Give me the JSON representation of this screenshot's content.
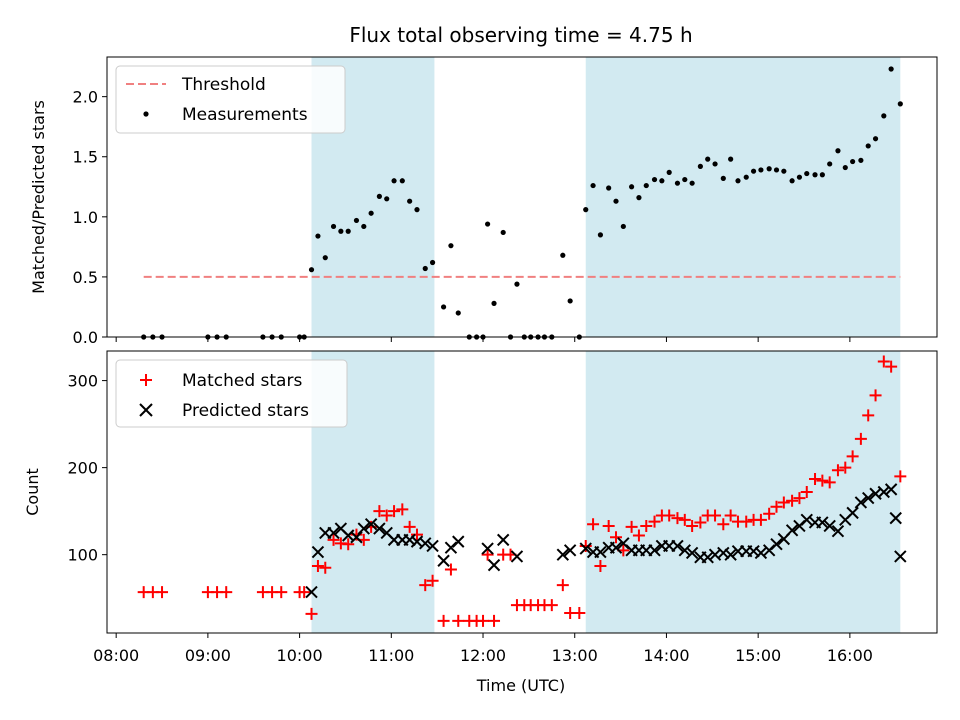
{
  "chart_data": {
    "type": "scatter",
    "title": "Flux total observing time = 4.75 h",
    "xlabel": "Time (UTC)",
    "x_ticks": [
      "08:00",
      "09:00",
      "10:00",
      "11:00",
      "12:00",
      "13:00",
      "14:00",
      "15:00",
      "16:00"
    ],
    "x_tick_hours": [
      8,
      9,
      10,
      11,
      12,
      13,
      14,
      15,
      16
    ],
    "xlim_hours": [
      7.9,
      16.95
    ],
    "shaded_intervals_hours": [
      [
        10.13,
        11.47
      ],
      [
        13.12,
        16.55
      ]
    ],
    "shade_color": "#add8e6",
    "top_panel": {
      "ylabel": "Matched/Predicted stars",
      "ylim": [
        0,
        2.33
      ],
      "y_ticks": [
        0.0,
        0.5,
        1.0,
        1.5,
        2.0
      ],
      "y_tick_labels": [
        "0.0",
        "0.5",
        "1.0",
        "1.5",
        "2.0"
      ],
      "threshold": {
        "label": "Threshold",
        "value": 0.5,
        "x_range_hours": [
          8.3,
          16.55
        ],
        "color": "#f08080"
      },
      "measurements_label": "Measurements",
      "measurements": [
        [
          8.3,
          0
        ],
        [
          8.4,
          0
        ],
        [
          8.5,
          0
        ],
        [
          9.0,
          0
        ],
        [
          9.1,
          0
        ],
        [
          9.2,
          0
        ],
        [
          9.6,
          0
        ],
        [
          9.7,
          0
        ],
        [
          9.8,
          0
        ],
        [
          10.0,
          0
        ],
        [
          10.05,
          0
        ],
        [
          10.13,
          0.56
        ],
        [
          10.2,
          0.84
        ],
        [
          10.28,
          0.66
        ],
        [
          10.37,
          0.92
        ],
        [
          10.45,
          0.88
        ],
        [
          10.53,
          0.88
        ],
        [
          10.62,
          0.97
        ],
        [
          10.7,
          0.92
        ],
        [
          10.78,
          1.03
        ],
        [
          10.87,
          1.17
        ],
        [
          10.95,
          1.15
        ],
        [
          11.03,
          1.3
        ],
        [
          11.12,
          1.3
        ],
        [
          11.2,
          1.13
        ],
        [
          11.28,
          1.06
        ],
        [
          11.37,
          0.57
        ],
        [
          11.45,
          0.62
        ],
        [
          11.57,
          0.25
        ],
        [
          11.65,
          0.76
        ],
        [
          11.73,
          0.2
        ],
        [
          11.85,
          0
        ],
        [
          11.93,
          0
        ],
        [
          12.0,
          0
        ],
        [
          12.05,
          0.94
        ],
        [
          12.12,
          0.28
        ],
        [
          12.22,
          0.87
        ],
        [
          12.3,
          0
        ],
        [
          12.37,
          0.44
        ],
        [
          12.45,
          0
        ],
        [
          12.52,
          0
        ],
        [
          12.6,
          0
        ],
        [
          12.67,
          0
        ],
        [
          12.75,
          0
        ],
        [
          12.87,
          0.68
        ],
        [
          12.95,
          0.3
        ],
        [
          13.05,
          0
        ],
        [
          13.12,
          1.06
        ],
        [
          13.2,
          1.26
        ],
        [
          13.28,
          0.85
        ],
        [
          13.37,
          1.24
        ],
        [
          13.45,
          1.13
        ],
        [
          13.53,
          0.92
        ],
        [
          13.62,
          1.25
        ],
        [
          13.7,
          1.16
        ],
        [
          13.78,
          1.26
        ],
        [
          13.87,
          1.31
        ],
        [
          13.95,
          1.3
        ],
        [
          14.03,
          1.37
        ],
        [
          14.12,
          1.28
        ],
        [
          14.2,
          1.31
        ],
        [
          14.28,
          1.28
        ],
        [
          14.37,
          1.42
        ],
        [
          14.45,
          1.48
        ],
        [
          14.53,
          1.44
        ],
        [
          14.62,
          1.32
        ],
        [
          14.7,
          1.48
        ],
        [
          14.78,
          1.3
        ],
        [
          14.87,
          1.33
        ],
        [
          14.95,
          1.38
        ],
        [
          15.03,
          1.39
        ],
        [
          15.12,
          1.4
        ],
        [
          15.2,
          1.39
        ],
        [
          15.28,
          1.38
        ],
        [
          15.37,
          1.3
        ],
        [
          15.45,
          1.33
        ],
        [
          15.53,
          1.36
        ],
        [
          15.62,
          1.35
        ],
        [
          15.7,
          1.35
        ],
        [
          15.78,
          1.44
        ],
        [
          15.87,
          1.55
        ],
        [
          15.95,
          1.41
        ],
        [
          16.03,
          1.46
        ],
        [
          16.12,
          1.47
        ],
        [
          16.2,
          1.59
        ],
        [
          16.28,
          1.65
        ],
        [
          16.37,
          1.84
        ],
        [
          16.45,
          2.23
        ],
        [
          16.55,
          1.94
        ]
      ]
    },
    "bottom_panel": {
      "ylabel": "Count",
      "ylim": [
        10,
        334
      ],
      "y_ticks": [
        100,
        200,
        300
      ],
      "y_tick_labels": [
        "100",
        "200",
        "300"
      ],
      "series": [
        {
          "name": "Matched stars",
          "marker": "+",
          "color": "#ff0000",
          "points": [
            [
              8.3,
              57
            ],
            [
              8.4,
              57
            ],
            [
              8.5,
              57
            ],
            [
              9.0,
              57
            ],
            [
              9.1,
              57
            ],
            [
              9.2,
              57
            ],
            [
              9.6,
              57
            ],
            [
              9.7,
              57
            ],
            [
              9.8,
              57
            ],
            [
              10.0,
              57
            ],
            [
              10.05,
              57
            ],
            [
              10.13,
              32
            ],
            [
              10.2,
              87
            ],
            [
              10.28,
              85
            ],
            [
              10.37,
              117
            ],
            [
              10.45,
              113
            ],
            [
              10.53,
              112
            ],
            [
              10.62,
              123
            ],
            [
              10.7,
              117
            ],
            [
              10.78,
              132
            ],
            [
              10.87,
              150
            ],
            [
              10.95,
              145
            ],
            [
              11.03,
              150
            ],
            [
              11.12,
              152
            ],
            [
              11.2,
              132
            ],
            [
              11.28,
              123
            ],
            [
              11.37,
              65
            ],
            [
              11.45,
              70
            ],
            [
              11.57,
              24
            ],
            [
              11.65,
              83
            ],
            [
              11.73,
              24
            ],
            [
              11.85,
              24
            ],
            [
              11.93,
              24
            ],
            [
              12.0,
              24
            ],
            [
              12.05,
              100
            ],
            [
              12.12,
              24
            ],
            [
              12.22,
              100
            ],
            [
              12.3,
              100
            ],
            [
              12.37,
              42
            ],
            [
              12.45,
              42
            ],
            [
              12.52,
              42
            ],
            [
              12.6,
              42
            ],
            [
              12.67,
              42
            ],
            [
              12.75,
              42
            ],
            [
              12.87,
              65
            ],
            [
              12.95,
              33
            ],
            [
              13.05,
              33
            ],
            [
              13.12,
              110
            ],
            [
              13.2,
              135
            ],
            [
              13.28,
              87
            ],
            [
              13.37,
              133
            ],
            [
              13.45,
              120
            ],
            [
              13.53,
              105
            ],
            [
              13.62,
              132
            ],
            [
              13.7,
              122
            ],
            [
              13.78,
              133
            ],
            [
              13.87,
              138
            ],
            [
              13.95,
              145
            ],
            [
              14.03,
              145
            ],
            [
              14.12,
              142
            ],
            [
              14.2,
              140
            ],
            [
              14.28,
              133
            ],
            [
              14.37,
              137
            ],
            [
              14.45,
              145
            ],
            [
              14.53,
              145
            ],
            [
              14.62,
              135
            ],
            [
              14.7,
              145
            ],
            [
              14.78,
              138
            ],
            [
              14.87,
              138
            ],
            [
              14.95,
              140
            ],
            [
              15.03,
              140
            ],
            [
              15.12,
              147
            ],
            [
              15.2,
              155
            ],
            [
              15.28,
              160
            ],
            [
              15.37,
              162
            ],
            [
              15.45,
              165
            ],
            [
              15.53,
              172
            ],
            [
              15.62,
              187
            ],
            [
              15.7,
              185
            ],
            [
              15.78,
              183
            ],
            [
              15.87,
              197
            ],
            [
              15.95,
              200
            ],
            [
              16.03,
              213
            ],
            [
              16.12,
              233
            ],
            [
              16.2,
              260
            ],
            [
              16.28,
              283
            ],
            [
              16.37,
              322
            ],
            [
              16.45,
              316
            ],
            [
              16.55,
              190
            ]
          ]
        },
        {
          "name": "Predicted stars",
          "marker": "x",
          "color": "#000000",
          "points": [
            [
              10.13,
              57
            ],
            [
              10.2,
              103
            ],
            [
              10.28,
              125
            ],
            [
              10.37,
              125
            ],
            [
              10.45,
              130
            ],
            [
              10.53,
              122
            ],
            [
              10.62,
              120
            ],
            [
              10.7,
              130
            ],
            [
              10.78,
              135
            ],
            [
              10.87,
              130
            ],
            [
              10.95,
              125
            ],
            [
              11.03,
              117
            ],
            [
              11.12,
              117
            ],
            [
              11.2,
              117
            ],
            [
              11.28,
              115
            ],
            [
              11.37,
              113
            ],
            [
              11.45,
              110
            ],
            [
              11.57,
              93
            ],
            [
              11.65,
              108
            ],
            [
              11.73,
              115
            ],
            [
              12.05,
              107
            ],
            [
              12.12,
              88
            ],
            [
              12.22,
              117
            ],
            [
              12.37,
              98
            ],
            [
              12.87,
              100
            ],
            [
              12.95,
              105
            ],
            [
              13.12,
              107
            ],
            [
              13.2,
              103
            ],
            [
              13.28,
              103
            ],
            [
              13.37,
              108
            ],
            [
              13.45,
              108
            ],
            [
              13.53,
              113
            ],
            [
              13.62,
              105
            ],
            [
              13.7,
              105
            ],
            [
              13.78,
              105
            ],
            [
              13.87,
              105
            ],
            [
              13.95,
              110
            ],
            [
              14.03,
              110
            ],
            [
              14.12,
              110
            ],
            [
              14.2,
              105
            ],
            [
              14.28,
              102
            ],
            [
              14.37,
              97
            ],
            [
              14.45,
              97
            ],
            [
              14.53,
              100
            ],
            [
              14.62,
              102
            ],
            [
              14.7,
              100
            ],
            [
              14.78,
              104
            ],
            [
              14.87,
              104
            ],
            [
              14.95,
              104
            ],
            [
              15.03,
              102
            ],
            [
              15.12,
              105
            ],
            [
              15.2,
              112
            ],
            [
              15.28,
              118
            ],
            [
              15.37,
              128
            ],
            [
              15.45,
              133
            ],
            [
              15.53,
              140
            ],
            [
              15.62,
              137
            ],
            [
              15.7,
              137
            ],
            [
              15.78,
              133
            ],
            [
              15.87,
              127
            ],
            [
              15.95,
              140
            ],
            [
              16.03,
              148
            ],
            [
              16.12,
              160
            ],
            [
              16.2,
              165
            ],
            [
              16.28,
              170
            ],
            [
              16.37,
              172
            ],
            [
              16.45,
              175
            ],
            [
              16.5,
              142
            ],
            [
              16.55,
              98
            ]
          ]
        }
      ]
    }
  }
}
